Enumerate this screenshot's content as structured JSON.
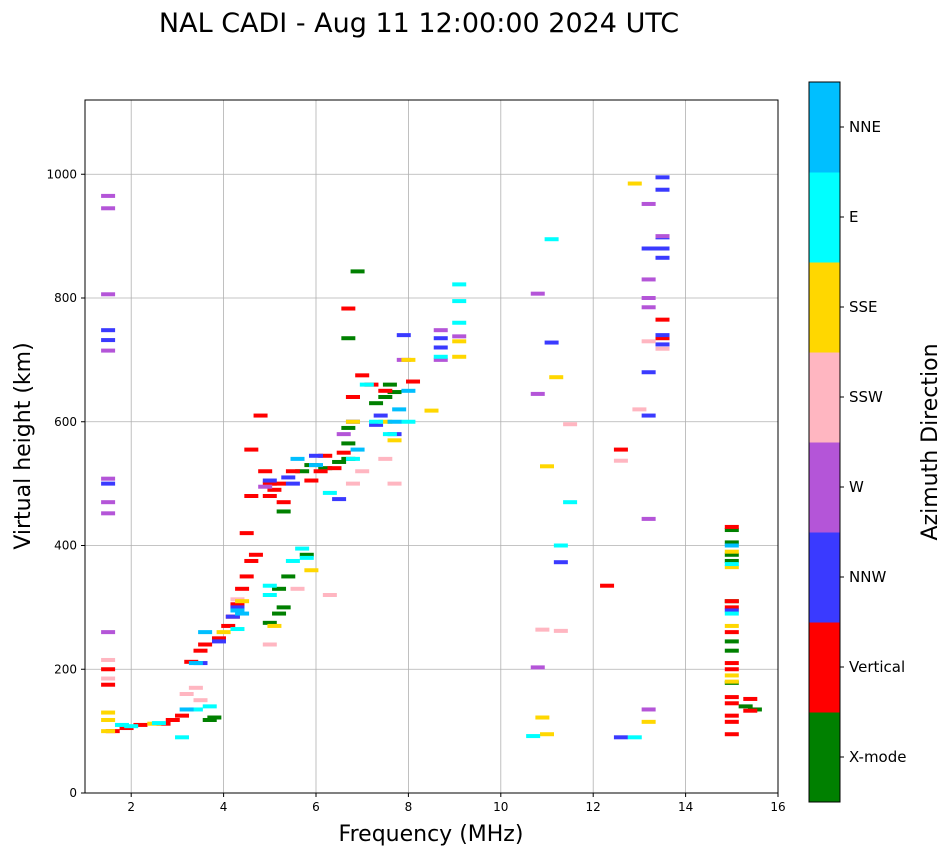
{
  "chart_data": {
    "type": "scatter",
    "title": "NAL CADI - Aug 11 12:00:00 2024 UTC",
    "xlabel": "Frequency (MHz)",
    "ylabel": "Virtual height (km)",
    "xlim": [
      1,
      16
    ],
    "ylim": [
      0,
      1120
    ],
    "xticks": [
      2,
      4,
      6,
      8,
      10,
      12,
      14,
      16
    ],
    "yticks": [
      0,
      200,
      400,
      600,
      800,
      1000
    ],
    "grid": true,
    "colorbar": {
      "title": "Azimuth Direction",
      "categories": [
        {
          "name": "X-mode",
          "color": "#008000"
        },
        {
          "name": "Vertical",
          "color": "#ff0000"
        },
        {
          "name": "NNW",
          "color": "#3a3aff"
        },
        {
          "name": "W",
          "color": "#b455d8"
        },
        {
          "name": "SSW",
          "color": "#ffb6c1"
        },
        {
          "name": "SSE",
          "color": "#ffd700"
        },
        {
          "name": "E",
          "color": "#00ffff"
        },
        {
          "name": "NNE",
          "color": "#00bfff"
        }
      ]
    },
    "series": [
      {
        "name": "X-mode",
        "points": [
          [
            3.7,
            118
          ],
          [
            3.8,
            122
          ],
          [
            5.0,
            275
          ],
          [
            5.2,
            290
          ],
          [
            5.3,
            300
          ],
          [
            5.2,
            330
          ],
          [
            5.4,
            350
          ],
          [
            5.8,
            385
          ],
          [
            5.3,
            455
          ],
          [
            5.7,
            520
          ],
          [
            5.9,
            530
          ],
          [
            6.2,
            525
          ],
          [
            6.5,
            535
          ],
          [
            6.7,
            540
          ],
          [
            6.7,
            565
          ],
          [
            6.7,
            590
          ],
          [
            6.8,
            640
          ],
          [
            6.7,
            735
          ],
          [
            6.9,
            843
          ],
          [
            7.3,
            630
          ],
          [
            7.5,
            640
          ],
          [
            7.6,
            660
          ],
          [
            7.7,
            648
          ],
          [
            15.0,
            425
          ],
          [
            15.0,
            405
          ],
          [
            15.0,
            385
          ],
          [
            15.0,
            375
          ],
          [
            15.0,
            310
          ],
          [
            15.0,
            245
          ],
          [
            15.0,
            230
          ],
          [
            15.0,
            178
          ],
          [
            15.3,
            140
          ],
          [
            15.5,
            135
          ]
        ]
      },
      {
        "name": "Vertical",
        "points": [
          [
            1.5,
            200
          ],
          [
            1.5,
            175
          ],
          [
            1.6,
            100
          ],
          [
            1.9,
            105
          ],
          [
            2.2,
            110
          ],
          [
            2.7,
            112
          ],
          [
            2.9,
            118
          ],
          [
            3.1,
            125
          ],
          [
            3.3,
            212
          ],
          [
            3.5,
            230
          ],
          [
            3.6,
            240
          ],
          [
            3.9,
            250
          ],
          [
            4.1,
            270
          ],
          [
            4.2,
            285
          ],
          [
            4.3,
            305
          ],
          [
            4.4,
            330
          ],
          [
            4.5,
            350
          ],
          [
            4.6,
            375
          ],
          [
            4.7,
            385
          ],
          [
            4.5,
            420
          ],
          [
            4.6,
            480
          ],
          [
            4.6,
            555
          ],
          [
            4.8,
            610
          ],
          [
            4.9,
            520
          ],
          [
            5.0,
            500
          ],
          [
            5.0,
            480
          ],
          [
            5.1,
            490
          ],
          [
            5.2,
            500
          ],
          [
            5.3,
            470
          ],
          [
            5.5,
            520
          ],
          [
            5.9,
            505
          ],
          [
            6.1,
            520
          ],
          [
            6.2,
            545
          ],
          [
            6.4,
            525
          ],
          [
            6.6,
            550
          ],
          [
            6.7,
            783
          ],
          [
            6.8,
            640
          ],
          [
            7.0,
            675
          ],
          [
            7.2,
            660
          ],
          [
            7.5,
            650
          ],
          [
            8.1,
            665
          ],
          [
            12.3,
            335
          ],
          [
            12.6,
            555
          ],
          [
            13.5,
            765
          ],
          [
            13.5,
            735
          ],
          [
            15.0,
            430
          ],
          [
            15.0,
            310
          ],
          [
            15.0,
            300
          ],
          [
            15.0,
            260
          ],
          [
            15.0,
            210
          ],
          [
            15.0,
            200
          ],
          [
            15.0,
            155
          ],
          [
            15.0,
            145
          ],
          [
            15.0,
            125
          ],
          [
            15.0,
            115
          ],
          [
            15.0,
            95
          ],
          [
            15.4,
            152
          ],
          [
            15.4,
            133
          ]
        ]
      },
      {
        "name": "NNW",
        "points": [
          [
            1.5,
            748
          ],
          [
            1.5,
            732
          ],
          [
            1.5,
            500
          ],
          [
            3.5,
            210
          ],
          [
            3.9,
            245
          ],
          [
            4.2,
            285
          ],
          [
            4.3,
            300
          ],
          [
            5.0,
            505
          ],
          [
            5.4,
            510
          ],
          [
            5.5,
            500
          ],
          [
            6.0,
            545
          ],
          [
            6.5,
            475
          ],
          [
            6.8,
            600
          ],
          [
            7.3,
            595
          ],
          [
            7.4,
            610
          ],
          [
            7.7,
            580
          ],
          [
            7.9,
            740
          ],
          [
            8.7,
            735
          ],
          [
            8.7,
            720
          ],
          [
            11.1,
            728
          ],
          [
            11.3,
            373
          ],
          [
            12.6,
            90
          ],
          [
            13.2,
            680
          ],
          [
            13.2,
            610
          ],
          [
            13.2,
            880
          ],
          [
            13.5,
            995
          ],
          [
            13.5,
            975
          ],
          [
            13.5,
            898
          ],
          [
            13.5,
            880
          ],
          [
            13.5,
            865
          ],
          [
            13.5,
            740
          ],
          [
            13.5,
            725
          ],
          [
            15.0,
            295
          ]
        ]
      },
      {
        "name": "W",
        "points": [
          [
            1.5,
            965
          ],
          [
            1.5,
            945
          ],
          [
            1.5,
            806
          ],
          [
            1.5,
            715
          ],
          [
            1.5,
            508
          ],
          [
            1.5,
            470
          ],
          [
            1.5,
            452
          ],
          [
            1.5,
            260
          ],
          [
            4.9,
            495
          ],
          [
            6.6,
            580
          ],
          [
            7.9,
            700
          ],
          [
            8.7,
            748
          ],
          [
            8.7,
            700
          ],
          [
            9.1,
            738
          ],
          [
            10.8,
            807
          ],
          [
            10.8,
            645
          ],
          [
            10.8,
            203
          ],
          [
            13.2,
            952
          ],
          [
            13.2,
            830
          ],
          [
            13.2,
            800
          ],
          [
            13.2,
            785
          ],
          [
            13.2,
            443
          ],
          [
            13.2,
            135
          ],
          [
            13.5,
            900
          ]
        ]
      },
      {
        "name": "SSW",
        "points": [
          [
            1.5,
            215
          ],
          [
            1.5,
            185
          ],
          [
            3.2,
            160
          ],
          [
            3.4,
            170
          ],
          [
            3.5,
            150
          ],
          [
            4.3,
            313
          ],
          [
            5.0,
            240
          ],
          [
            5.6,
            330
          ],
          [
            6.3,
            320
          ],
          [
            6.8,
            500
          ],
          [
            7.0,
            520
          ],
          [
            7.5,
            540
          ],
          [
            7.7,
            500
          ],
          [
            10.9,
            264
          ],
          [
            11.3,
            262
          ],
          [
            11.5,
            596
          ],
          [
            13.0,
            620
          ],
          [
            13.2,
            730
          ],
          [
            13.5,
            718
          ],
          [
            12.6,
            537
          ]
        ]
      },
      {
        "name": "SSE",
        "points": [
          [
            1.5,
            130
          ],
          [
            1.5,
            118
          ],
          [
            1.5,
            100
          ],
          [
            2.5,
            112
          ],
          [
            4.0,
            260
          ],
          [
            4.4,
            310
          ],
          [
            5.1,
            270
          ],
          [
            5.9,
            360
          ],
          [
            6.8,
            600
          ],
          [
            7.5,
            600
          ],
          [
            7.7,
            570
          ],
          [
            8.0,
            700
          ],
          [
            8.5,
            618
          ],
          [
            9.1,
            730
          ],
          [
            9.1,
            705
          ],
          [
            10.9,
            122
          ],
          [
            11.0,
            528
          ],
          [
            11.0,
            95
          ],
          [
            11.2,
            672
          ],
          [
            12.9,
            985
          ],
          [
            13.2,
            115
          ],
          [
            15.0,
            390
          ],
          [
            15.0,
            365
          ],
          [
            15.0,
            270
          ],
          [
            15.0,
            190
          ],
          [
            15.0,
            180
          ]
        ]
      },
      {
        "name": "E",
        "points": [
          [
            1.8,
            110
          ],
          [
            2.0,
            108
          ],
          [
            2.6,
            113
          ],
          [
            3.1,
            90
          ],
          [
            3.4,
            135
          ],
          [
            3.7,
            140
          ],
          [
            4.3,
            265
          ],
          [
            5.0,
            320
          ],
          [
            5.0,
            335
          ],
          [
            5.5,
            375
          ],
          [
            5.7,
            395
          ],
          [
            5.8,
            380
          ],
          [
            6.3,
            485
          ],
          [
            6.8,
            540
          ],
          [
            7.1,
            660
          ],
          [
            7.3,
            600
          ],
          [
            7.6,
            580
          ],
          [
            8.0,
            600
          ],
          [
            8.7,
            705
          ],
          [
            9.1,
            822
          ],
          [
            9.1,
            795
          ],
          [
            9.1,
            760
          ],
          [
            10.7,
            92
          ],
          [
            11.1,
            895
          ],
          [
            11.3,
            400
          ],
          [
            11.5,
            470
          ],
          [
            12.9,
            90
          ],
          [
            15.0,
            290
          ],
          [
            15.0,
            370
          ]
        ]
      },
      {
        "name": "NNE",
        "points": [
          [
            3.2,
            135
          ],
          [
            3.6,
            260
          ],
          [
            3.4,
            210
          ],
          [
            4.4,
            290
          ],
          [
            4.3,
            295
          ],
          [
            5.6,
            540
          ],
          [
            6.0,
            530
          ],
          [
            6.9,
            555
          ],
          [
            7.7,
            600
          ],
          [
            7.8,
            620
          ],
          [
            8.0,
            650
          ],
          [
            15.0,
            400
          ]
        ]
      }
    ]
  }
}
